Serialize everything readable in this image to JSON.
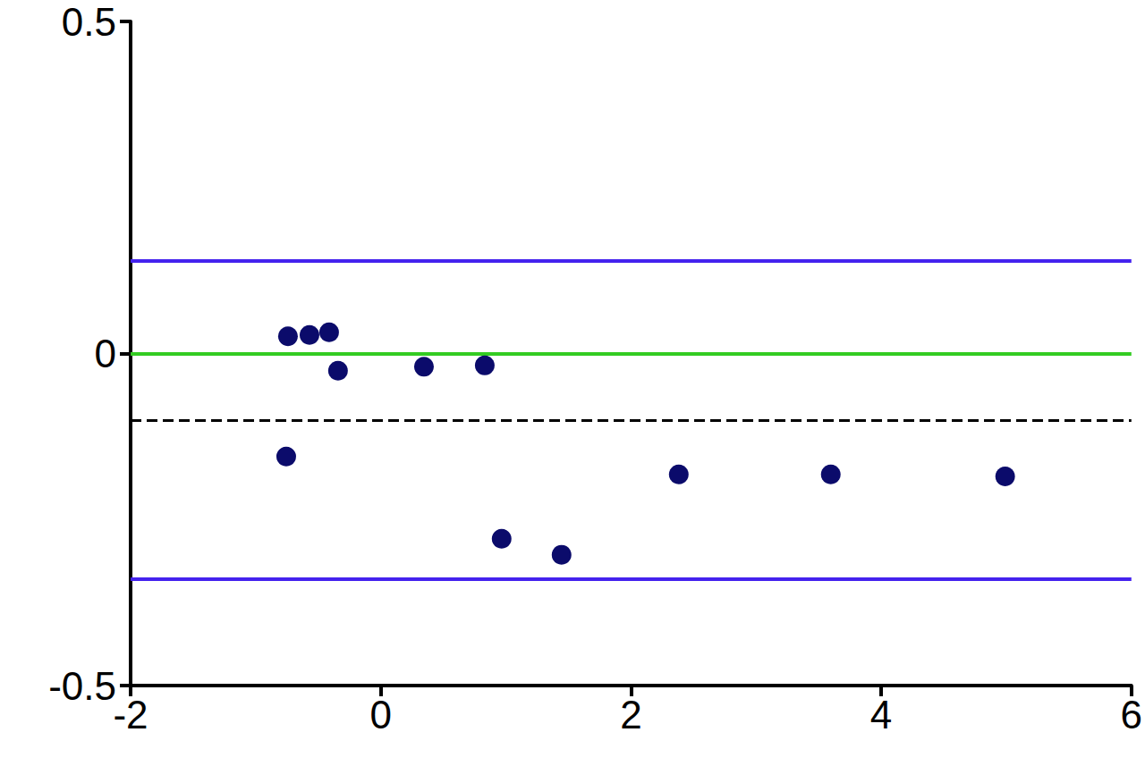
{
  "chart_data": {
    "type": "scatter",
    "x": [
      -0.742,
      -0.57,
      -0.413,
      -0.342,
      -0.756,
      0.345,
      0.831,
      0.966,
      1.445,
      2.382,
      3.597,
      4.991
    ],
    "values": [
      0.026,
      0.028,
      0.032,
      -0.026,
      -0.155,
      -0.02,
      -0.018,
      -0.279,
      -0.303,
      -0.182,
      -0.182,
      -0.185
    ],
    "color": "#0b0b6b",
    "marker": "circle",
    "reference_lines": [
      {
        "value": 0.138,
        "color": "#4422ee",
        "line_style": "solid"
      },
      {
        "value": 0,
        "color": "#33cc22",
        "line_style": "solid"
      },
      {
        "value": -0.103,
        "color": "#000000",
        "line_style": "dashed"
      },
      {
        "value": -0.344,
        "color": "#4422ee",
        "line_style": "solid"
      }
    ],
    "xlim": [
      -2,
      6
    ],
    "xticks": [
      -2,
      0,
      2,
      4,
      6
    ],
    "ylim": [
      -0.5,
      0.5
    ],
    "yticks": [
      -0.5,
      0,
      0.5
    ],
    "grid": false
  }
}
